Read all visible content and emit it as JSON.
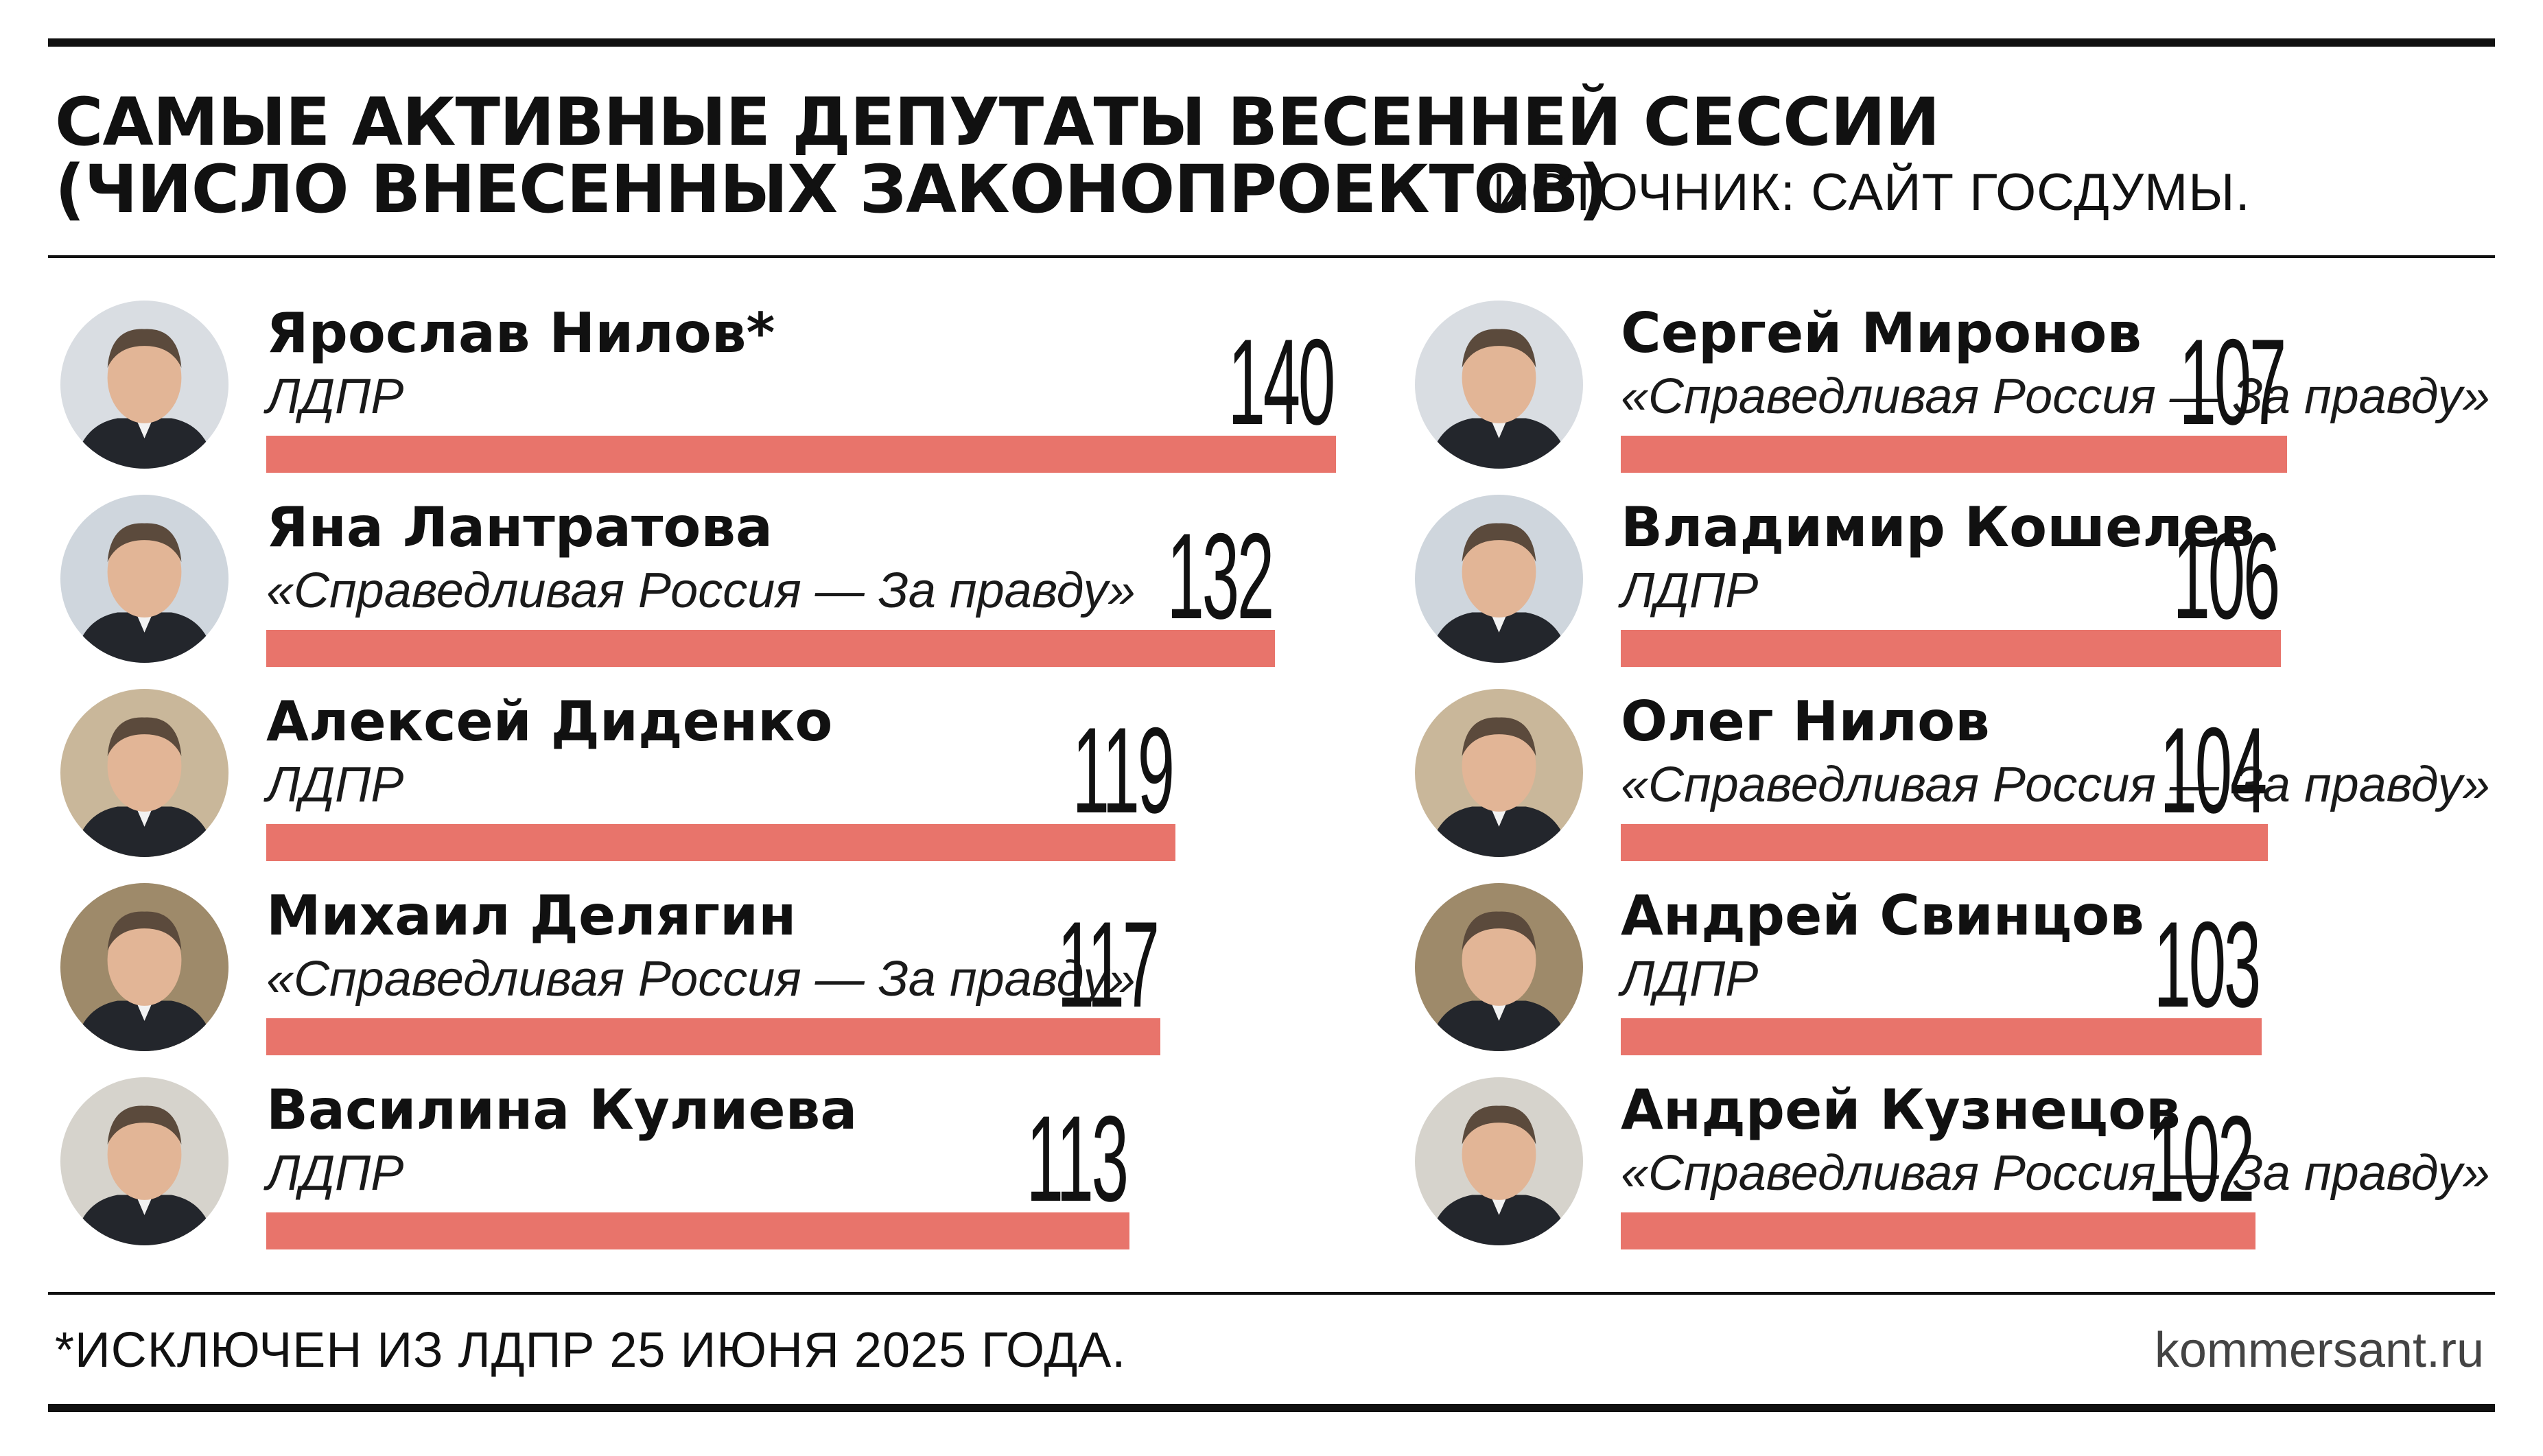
{
  "header": {
    "title_line1": "САМЫЕ АКТИВНЫЕ ДЕПУТАТЫ ВЕСЕННЕЙ СЕССИИ",
    "title_line2": "(ЧИСЛО ВНЕСЕННЫХ ЗАКОНОПРОЕКТОВ)",
    "source": "ИСТОЧНИК: САЙТ ГОСДУМЫ."
  },
  "chart_data": {
    "type": "bar",
    "orientation": "horizontal",
    "bar_color": "#e8746b",
    "xlim": [
      0,
      140
    ],
    "categories": [
      "Ярослав Нилов*",
      "Яна Лантратова",
      "Алексей Диденко",
      "Михаил Делягин",
      "Василина Кулиева",
      "Сергей Миронов",
      "Владимир Кошелев",
      "Олег Нилов",
      "Андрей Свинцов",
      "Андрей Кузнецов"
    ],
    "values": [
      140,
      132,
      119,
      117,
      113,
      107,
      106,
      104,
      103,
      102
    ],
    "entries": [
      {
        "name": "Ярослав Нилов*",
        "party": "ЛДПР",
        "value": 140,
        "column": "left"
      },
      {
        "name": "Яна Лантратова",
        "party": "«Справедливая Россия — За правду»",
        "value": 132,
        "column": "left"
      },
      {
        "name": "Алексей Диденко",
        "party": "ЛДПР",
        "value": 119,
        "column": "left"
      },
      {
        "name": "Михаил Делягин",
        "party": "«Справедливая Россия — За правду»",
        "value": 117,
        "column": "left"
      },
      {
        "name": "Василина Кулиева",
        "party": "ЛДПР",
        "value": 113,
        "column": "left"
      },
      {
        "name": "Сергей Миронов",
        "party": "«Справедливая Россия — За правду»",
        "value": 107,
        "column": "right"
      },
      {
        "name": "Владимир Кошелев",
        "party": "ЛДПР",
        "value": 106,
        "column": "right"
      },
      {
        "name": "Олег Нилов",
        "party": "«Справедливая Россия — За правду»",
        "value": 104,
        "column": "right"
      },
      {
        "name": "Андрей Свинцов",
        "party": "ЛДПР",
        "value": 103,
        "column": "right"
      },
      {
        "name": "Андрей Кузнецов",
        "party": "«Справедливая Россия — За правду»",
        "value": 102,
        "column": "right"
      }
    ]
  },
  "footer": {
    "footnote": "*ИСКЛЮЧЕН ИЗ ЛДПР 25 ИЮНЯ 2025 ГОДА.",
    "site": "kommersant.ru"
  }
}
